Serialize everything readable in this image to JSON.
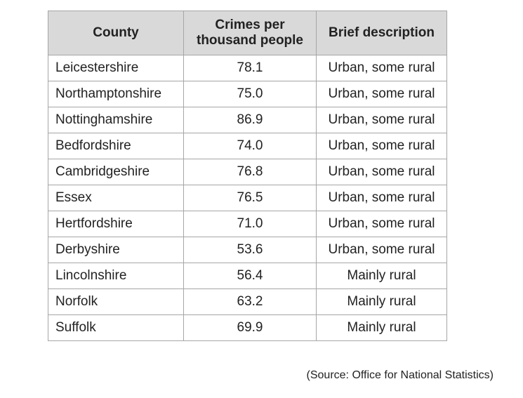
{
  "table": {
    "header": [
      "County",
      "Crimes per thousand people",
      "Brief description"
    ],
    "rows": [
      [
        "Leicestershire",
        "78.1",
        "Urban, some rural"
      ],
      [
        "Northamptonshire",
        "75.0",
        "Urban, some rural"
      ],
      [
        "Nottinghamshire",
        "86.9",
        "Urban, some rural"
      ],
      [
        "Bedfordshire",
        "74.0",
        "Urban, some rural"
      ],
      [
        "Cambridgeshire",
        "76.8",
        "Urban, some rural"
      ],
      [
        "Essex",
        "76.5",
        "Urban, some rural"
      ],
      [
        "Hertfordshire",
        "71.0",
        "Urban, some rural"
      ],
      [
        "Derbyshire",
        "53.6",
        "Urban, some rural"
      ],
      [
        "Lincolnshire",
        "56.4",
        "Mainly rural"
      ],
      [
        "Norfolk",
        "63.2",
        "Mainly rural"
      ],
      [
        "Suffolk",
        "69.9",
        "Mainly rural"
      ]
    ]
  },
  "source": "(Source: Office for National Statistics)"
}
